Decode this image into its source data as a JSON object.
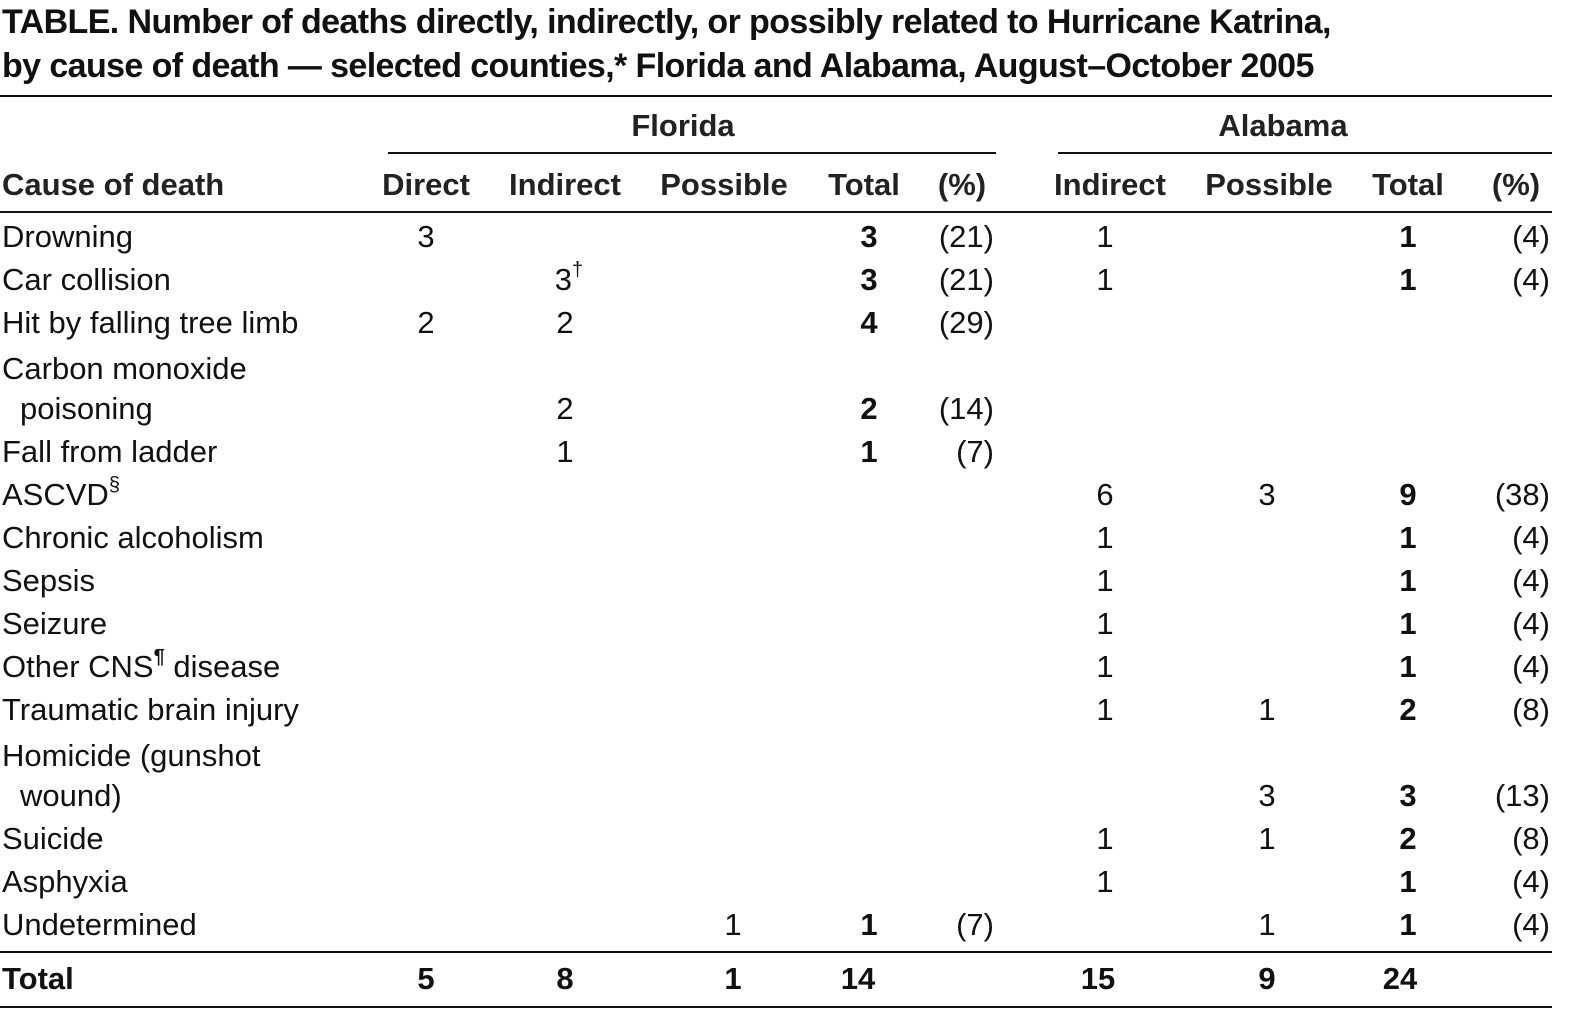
{
  "title_line1": "TABLE. Number of deaths directly, indirectly, or possibly related to Hurricane Katrina,",
  "title_line2": "by cause of death — selected counties,* Florida and Alabama, August–October 2005",
  "groups": {
    "florida": "Florida",
    "alabama": "Alabama"
  },
  "headers": {
    "cause": "Cause of death",
    "fl_direct": "Direct",
    "fl_indirect": "Indirect",
    "fl_possible": "Possible",
    "fl_total": "Total",
    "fl_pct": "(%)",
    "al_indirect": "Indirect",
    "al_possible": "Possible",
    "al_total": "Total",
    "al_pct": "(%)"
  },
  "rows": [
    {
      "cause": "Drowning",
      "fl_direct": "3",
      "fl_indirect": "",
      "fl_possible": "",
      "fl_total": "3",
      "fl_pct": "(21)",
      "al_indirect": "1",
      "al_possible": "",
      "al_total": "1",
      "al_pct": "(4)"
    },
    {
      "cause": "Car collision",
      "fl_direct": "",
      "fl_indirect": "3",
      "fl_indirect_sup": "†",
      "fl_possible": "",
      "fl_total": "3",
      "fl_pct": "(21)",
      "al_indirect": "1",
      "al_possible": "",
      "al_total": "1",
      "al_pct": "(4)"
    },
    {
      "cause": "Hit by falling tree limb",
      "fl_direct": "2",
      "fl_indirect": "2",
      "fl_possible": "",
      "fl_total": "4",
      "fl_pct": "(29)",
      "al_indirect": "",
      "al_possible": "",
      "al_total": "",
      "al_pct": ""
    },
    {
      "cause": "Carbon monoxide",
      "cause_line2": "poisoning",
      "fl_direct": "",
      "fl_indirect": "2",
      "fl_possible": "",
      "fl_total": "2",
      "fl_pct": "(14)",
      "al_indirect": "",
      "al_possible": "",
      "al_total": "",
      "al_pct": ""
    },
    {
      "cause": "Fall from ladder",
      "fl_direct": "",
      "fl_indirect": "1",
      "fl_possible": "",
      "fl_total": "1",
      "fl_pct": "(7)",
      "al_indirect": "",
      "al_possible": "",
      "al_total": "",
      "al_pct": ""
    },
    {
      "cause": "ASCVD",
      "cause_sup": "§",
      "fl_direct": "",
      "fl_indirect": "",
      "fl_possible": "",
      "fl_total": "",
      "fl_pct": "",
      "al_indirect": "6",
      "al_possible": "3",
      "al_total": "9",
      "al_pct": "(38)"
    },
    {
      "cause": "Chronic alcoholism",
      "fl_direct": "",
      "fl_indirect": "",
      "fl_possible": "",
      "fl_total": "",
      "fl_pct": "",
      "al_indirect": "1",
      "al_possible": "",
      "al_total": "1",
      "al_pct": "(4)"
    },
    {
      "cause": "Sepsis",
      "fl_direct": "",
      "fl_indirect": "",
      "fl_possible": "",
      "fl_total": "",
      "fl_pct": "",
      "al_indirect": "1",
      "al_possible": "",
      "al_total": "1",
      "al_pct": "(4)"
    },
    {
      "cause": "Seizure",
      "fl_direct": "",
      "fl_indirect": "",
      "fl_possible": "",
      "fl_total": "",
      "fl_pct": "",
      "al_indirect": "1",
      "al_possible": "",
      "al_total": "1",
      "al_pct": "(4)"
    },
    {
      "cause": "Other CNS",
      "cause_sup": "¶",
      "cause_suffix": " disease",
      "fl_direct": "",
      "fl_indirect": "",
      "fl_possible": "",
      "fl_total": "",
      "fl_pct": "",
      "al_indirect": "1",
      "al_possible": "",
      "al_total": "1",
      "al_pct": "(4)"
    },
    {
      "cause": "Traumatic brain injury",
      "fl_direct": "",
      "fl_indirect": "",
      "fl_possible": "",
      "fl_total": "",
      "fl_pct": "",
      "al_indirect": "1",
      "al_possible": "1",
      "al_total": "2",
      "al_pct": "(8)"
    },
    {
      "cause": "Homicide (gunshot",
      "cause_line2": "wound)",
      "fl_direct": "",
      "fl_indirect": "",
      "fl_possible": "",
      "fl_total": "",
      "fl_pct": "",
      "al_indirect": "",
      "al_possible": "3",
      "al_total": "3",
      "al_pct": "(13)"
    },
    {
      "cause": "Suicide",
      "fl_direct": "",
      "fl_indirect": "",
      "fl_possible": "",
      "fl_total": "",
      "fl_pct": "",
      "al_indirect": "1",
      "al_possible": "1",
      "al_total": "2",
      "al_pct": "(8)"
    },
    {
      "cause": "Asphyxia",
      "fl_direct": "",
      "fl_indirect": "",
      "fl_possible": "",
      "fl_total": "",
      "fl_pct": "",
      "al_indirect": "1",
      "al_possible": "",
      "al_total": "1",
      "al_pct": "(4)"
    },
    {
      "cause": "Undetermined",
      "fl_direct": "",
      "fl_indirect": "",
      "fl_possible": "1",
      "fl_total": "1",
      "fl_pct": "(7)",
      "al_indirect": "",
      "al_possible": "1",
      "al_total": "1",
      "al_pct": "(4)"
    }
  ],
  "total_row": {
    "label": "Total",
    "fl_direct": "5",
    "fl_indirect": "8",
    "fl_possible": "1",
    "fl_total": "14",
    "al_indirect": "15",
    "al_possible": "9",
    "al_total": "24"
  }
}
